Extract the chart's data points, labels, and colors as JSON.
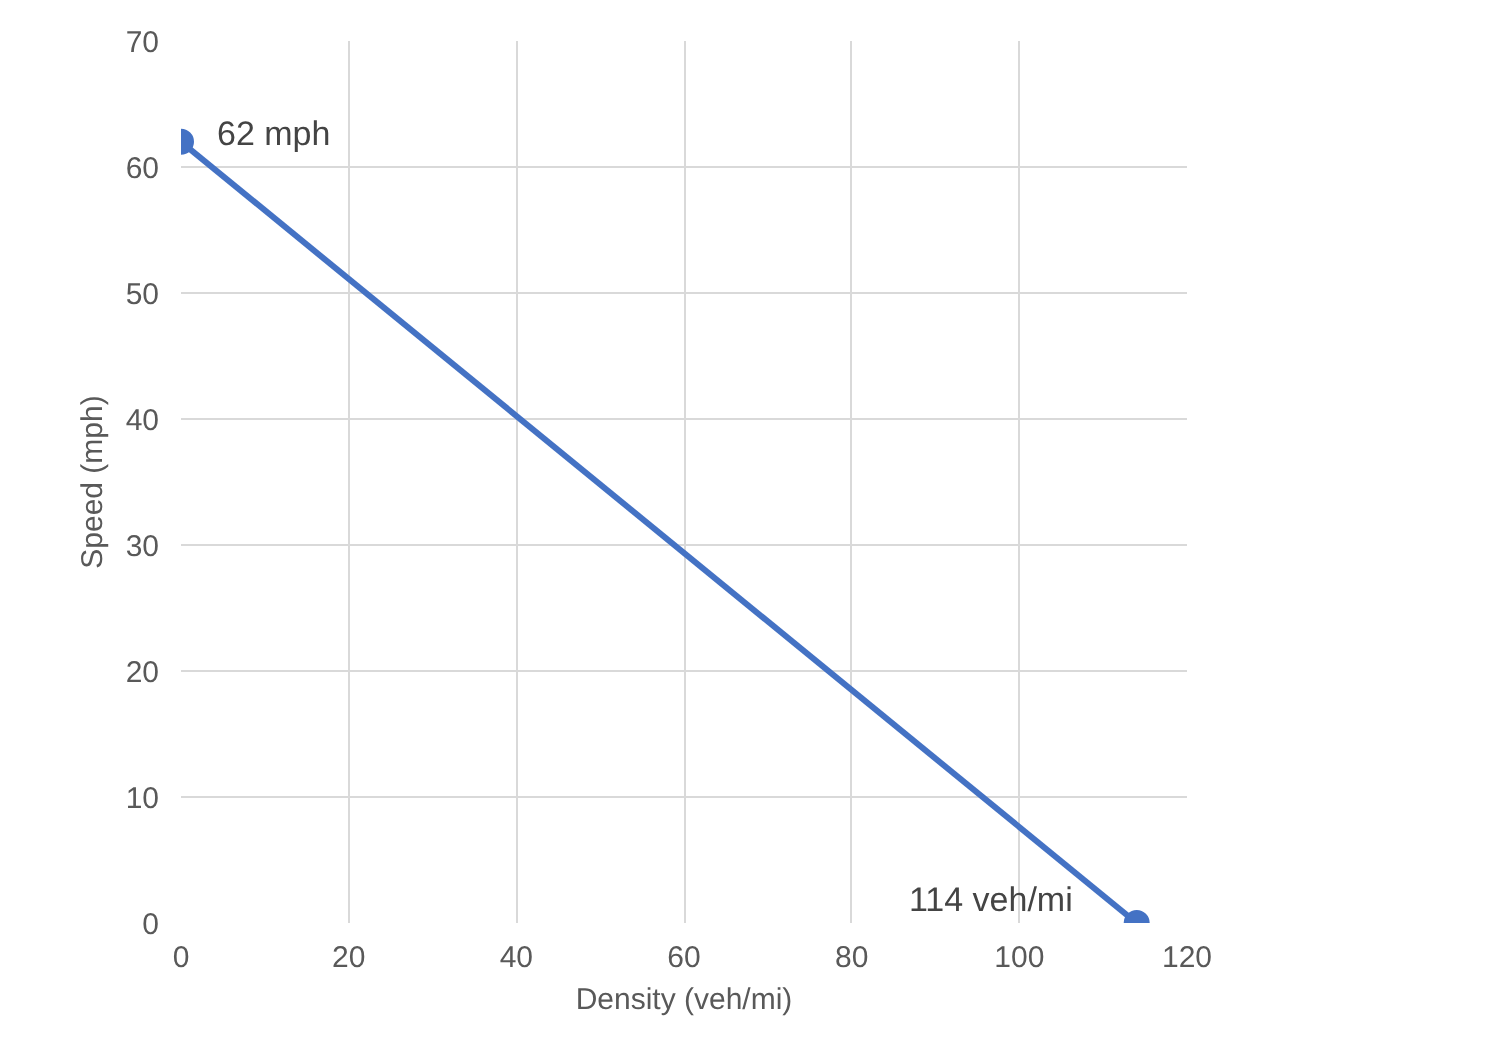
{
  "chart_data": {
    "type": "line",
    "xlabel": "Density (veh/mi)",
    "ylabel": "Speed (mph)",
    "x": [
      0,
      114
    ],
    "series": [
      {
        "color": "#4472c4",
        "values": [
          62,
          0
        ]
      }
    ],
    "marker": "circle",
    "grid": true,
    "xlim": [
      0,
      120
    ],
    "xticks": [
      0,
      20,
      40,
      60,
      80,
      100,
      120
    ],
    "ylim": [
      0,
      70
    ],
    "yticks": [
      0,
      10,
      20,
      30,
      40,
      50,
      60,
      70
    ],
    "annotations": [
      {
        "text": "62 mph",
        "x": 0,
        "y": 62
      },
      {
        "text": "114 veh/mi",
        "x": 114,
        "y": 0
      }
    ]
  }
}
